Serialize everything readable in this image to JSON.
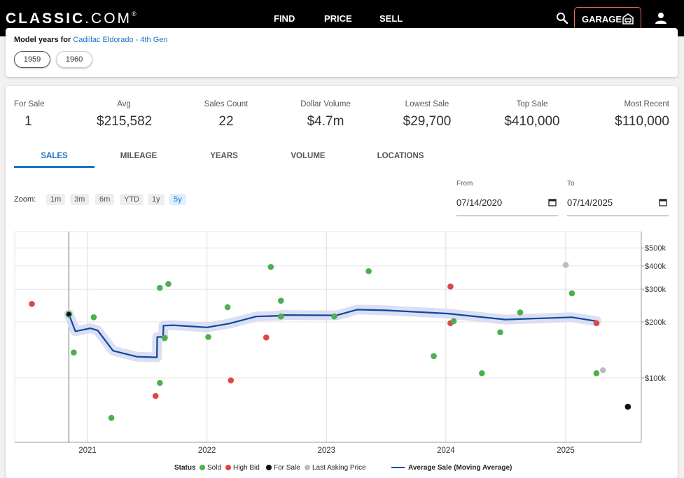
{
  "header": {
    "logo_main": "CLASSIC",
    "logo_dot": ".COM",
    "logo_mark": "®",
    "nav": [
      "FIND",
      "PRICE",
      "SELL"
    ],
    "garage_label": "GARAGE"
  },
  "years": {
    "prefix": "Model years for ",
    "model_link": "Cadillac Eldorado - 4th Gen",
    "chips": [
      "1959",
      "1960"
    ]
  },
  "stats": [
    {
      "label": "For Sale",
      "value": "1"
    },
    {
      "label": "Avg",
      "value": "$215,582"
    },
    {
      "label": "Sales Count",
      "value": "22"
    },
    {
      "label": "Dollar Volume",
      "value": "$4.7m"
    },
    {
      "label": "Lowest Sale",
      "value": "$29,700"
    },
    {
      "label": "Top Sale",
      "value": "$410,000"
    },
    {
      "label": "Most Recent",
      "value": "$110,000"
    }
  ],
  "tabs": [
    "SALES",
    "MILEAGE",
    "YEARS",
    "VOLUME",
    "LOCATIONS"
  ],
  "active_tab": "SALES",
  "zoom": {
    "label": "Zoom:",
    "options": [
      "1m",
      "3m",
      "6m",
      "YTD",
      "1y",
      "5y"
    ],
    "active": "5y"
  },
  "date_range": {
    "from_label": "From",
    "from_value": "07/14/2020",
    "to_label": "To",
    "to_value": "07/14/2025"
  },
  "colors": {
    "sold": "#4caf50",
    "high_bid": "#e04545",
    "for_sale": "#111111",
    "last_asking": "#bdbdbd",
    "average": "#0d47a1"
  },
  "chart_data": {
    "type": "scatter",
    "scale": "log",
    "x_ticks": [
      "2021",
      "2022",
      "2023",
      "2024",
      "2025"
    ],
    "y_ticks": [
      "$100k",
      "$200k",
      "$300k",
      "$400k",
      "$500k"
    ],
    "legend": {
      "title": "Status",
      "items": [
        "Sold",
        "High Bid",
        "For Sale",
        "Last Asking Price",
        "Average Sale (Moving Average)"
      ]
    },
    "points": [
      {
        "x": "2020-07-15",
        "y": 250000,
        "status": "High Bid"
      },
      {
        "x": "2020-11-05",
        "y": 220000,
        "status": "For Sale"
      },
      {
        "x": "2020-11-20",
        "y": 137000,
        "status": "Sold"
      },
      {
        "x": "2021-01-20",
        "y": 212000,
        "status": "Sold"
      },
      {
        "x": "2021-03-15",
        "y": 61000,
        "status": "Sold"
      },
      {
        "x": "2021-07-28",
        "y": 80000,
        "status": "High Bid"
      },
      {
        "x": "2021-08-10",
        "y": 94000,
        "status": "Sold"
      },
      {
        "x": "2021-08-10",
        "y": 305000,
        "status": "Sold"
      },
      {
        "x": "2021-08-25",
        "y": 164000,
        "status": "Sold"
      },
      {
        "x": "2021-09-05",
        "y": 320000,
        "status": "Sold"
      },
      {
        "x": "2022-01-05",
        "y": 166000,
        "status": "Sold"
      },
      {
        "x": "2022-03-05",
        "y": 240000,
        "status": "Sold"
      },
      {
        "x": "2022-03-15",
        "y": 97000,
        "status": "High Bid"
      },
      {
        "x": "2022-07-01",
        "y": 165000,
        "status": "High Bid"
      },
      {
        "x": "2022-07-15",
        "y": 395000,
        "status": "Sold"
      },
      {
        "x": "2022-08-15",
        "y": 214000,
        "status": "Sold"
      },
      {
        "x": "2022-08-15",
        "y": 260000,
        "status": "Sold"
      },
      {
        "x": "2023-01-25",
        "y": 214000,
        "status": "Sold"
      },
      {
        "x": "2023-05-10",
        "y": 375000,
        "status": "Sold"
      },
      {
        "x": "2023-11-25",
        "y": 131000,
        "status": "Sold"
      },
      {
        "x": "2024-01-15",
        "y": 197000,
        "status": "High Bid"
      },
      {
        "x": "2024-01-15",
        "y": 310000,
        "status": "High Bid"
      },
      {
        "x": "2024-01-25",
        "y": 202000,
        "status": "Sold"
      },
      {
        "x": "2024-04-20",
        "y": 106000,
        "status": "Sold"
      },
      {
        "x": "2024-06-15",
        "y": 176000,
        "status": "Sold"
      },
      {
        "x": "2024-08-15",
        "y": 225000,
        "status": "Sold"
      },
      {
        "x": "2025-01-01",
        "y": 405000,
        "status": "Last Asking Price"
      },
      {
        "x": "2025-01-20",
        "y": 285000,
        "status": "Sold"
      },
      {
        "x": "2025-04-05",
        "y": 197000,
        "status": "High Bid"
      },
      {
        "x": "2025-04-05",
        "y": 106000,
        "status": "Sold"
      },
      {
        "x": "2025-04-25",
        "y": 110000,
        "status": "Last Asking Price"
      },
      {
        "x": "2025-07-10",
        "y": 70000,
        "status": "For Sale"
      }
    ],
    "average_line": [
      {
        "x": "2020-11-05",
        "y": 220000
      },
      {
        "x": "2020-11-25",
        "y": 178000
      },
      {
        "x": "2021-01-10",
        "y": 185000
      },
      {
        "x": "2021-02-01",
        "y": 180000
      },
      {
        "x": "2021-03-20",
        "y": 140000
      },
      {
        "x": "2021-06-01",
        "y": 130000
      },
      {
        "x": "2021-08-01",
        "y": 129000
      },
      {
        "x": "2021-08-02",
        "y": 166000
      },
      {
        "x": "2021-08-20",
        "y": 166000
      },
      {
        "x": "2021-08-21",
        "y": 191000
      },
      {
        "x": "2021-09-20",
        "y": 192000
      },
      {
        "x": "2022-01-01",
        "y": 187000
      },
      {
        "x": "2022-03-10",
        "y": 196000
      },
      {
        "x": "2022-06-01",
        "y": 214000
      },
      {
        "x": "2022-08-14",
        "y": 216000
      },
      {
        "x": "2022-08-15",
        "y": 218000
      },
      {
        "x": "2023-02-01",
        "y": 217000
      },
      {
        "x": "2023-04-05",
        "y": 233000
      },
      {
        "x": "2023-07-01",
        "y": 231000
      },
      {
        "x": "2024-01-05",
        "y": 222000
      },
      {
        "x": "2024-07-01",
        "y": 206000
      },
      {
        "x": "2025-01-20",
        "y": 212000
      },
      {
        "x": "2025-04-05",
        "y": 202000
      }
    ]
  }
}
